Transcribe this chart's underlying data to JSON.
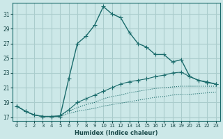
{
  "xlabel": "Humidex (Indice chaleur)",
  "ylabel": "",
  "bg_color": "#cce8e8",
  "grid_color": "#aacccc",
  "line_color": "#1a6b6b",
  "xlim": [
    -0.5,
    23.5
  ],
  "ylim": [
    16.5,
    32.5
  ],
  "xticks": [
    0,
    1,
    2,
    3,
    4,
    5,
    6,
    7,
    8,
    9,
    10,
    11,
    12,
    13,
    14,
    15,
    16,
    17,
    18,
    19,
    20,
    21,
    22,
    23
  ],
  "yticks": [
    17,
    19,
    21,
    23,
    25,
    27,
    29,
    31
  ],
  "series1_x": [
    0,
    1,
    2,
    3,
    4,
    5,
    6,
    7,
    8,
    9,
    10,
    11,
    12,
    13,
    14,
    15,
    16,
    17,
    18,
    19,
    20,
    21,
    22,
    23
  ],
  "series1_y": [
    18.5,
    17.8,
    17.3,
    17.1,
    17.1,
    17.1,
    22.2,
    27.0,
    28.0,
    29.5,
    32.0,
    31.0,
    30.5,
    28.5,
    27.0,
    26.5,
    25.5,
    25.5,
    24.5,
    24.8,
    22.5,
    22.0,
    21.7,
    21.5
  ],
  "series2_x": [
    0,
    1,
    2,
    3,
    4,
    5,
    6,
    7,
    8,
    9,
    10,
    11,
    12,
    13,
    14,
    15,
    16,
    17,
    18,
    19,
    20,
    21,
    22,
    23
  ],
  "series2_y": [
    18.5,
    17.8,
    17.3,
    17.1,
    17.1,
    17.2,
    18.0,
    19.0,
    19.5,
    20.0,
    20.5,
    21.0,
    21.5,
    21.8,
    22.0,
    22.2,
    22.5,
    22.7,
    23.0,
    23.1,
    22.5,
    22.0,
    21.8,
    21.5
  ],
  "series3_x": [
    0,
    1,
    2,
    3,
    4,
    5,
    6,
    7,
    8,
    9,
    10,
    11,
    12,
    13,
    14,
    15,
    16,
    17,
    18,
    19,
    20,
    21,
    22,
    23
  ],
  "series3_y": [
    18.5,
    17.8,
    17.3,
    17.1,
    17.1,
    17.2,
    17.8,
    18.3,
    18.7,
    19.0,
    19.5,
    19.8,
    20.0,
    20.3,
    20.5,
    20.7,
    20.9,
    21.0,
    21.1,
    21.2,
    21.2,
    21.2,
    21.2,
    21.2
  ],
  "series4_x": [
    0,
    1,
    2,
    3,
    4,
    5,
    6,
    7,
    8,
    9,
    10,
    11,
    12,
    13,
    14,
    15,
    16,
    17,
    18,
    19,
    20,
    21,
    22,
    23
  ],
  "series4_y": [
    18.5,
    17.8,
    17.3,
    17.1,
    17.1,
    17.1,
    17.5,
    17.8,
    18.0,
    18.2,
    18.5,
    18.7,
    18.9,
    19.1,
    19.3,
    19.5,
    19.7,
    19.8,
    20.0,
    20.1,
    20.1,
    20.2,
    20.3,
    20.4
  ]
}
